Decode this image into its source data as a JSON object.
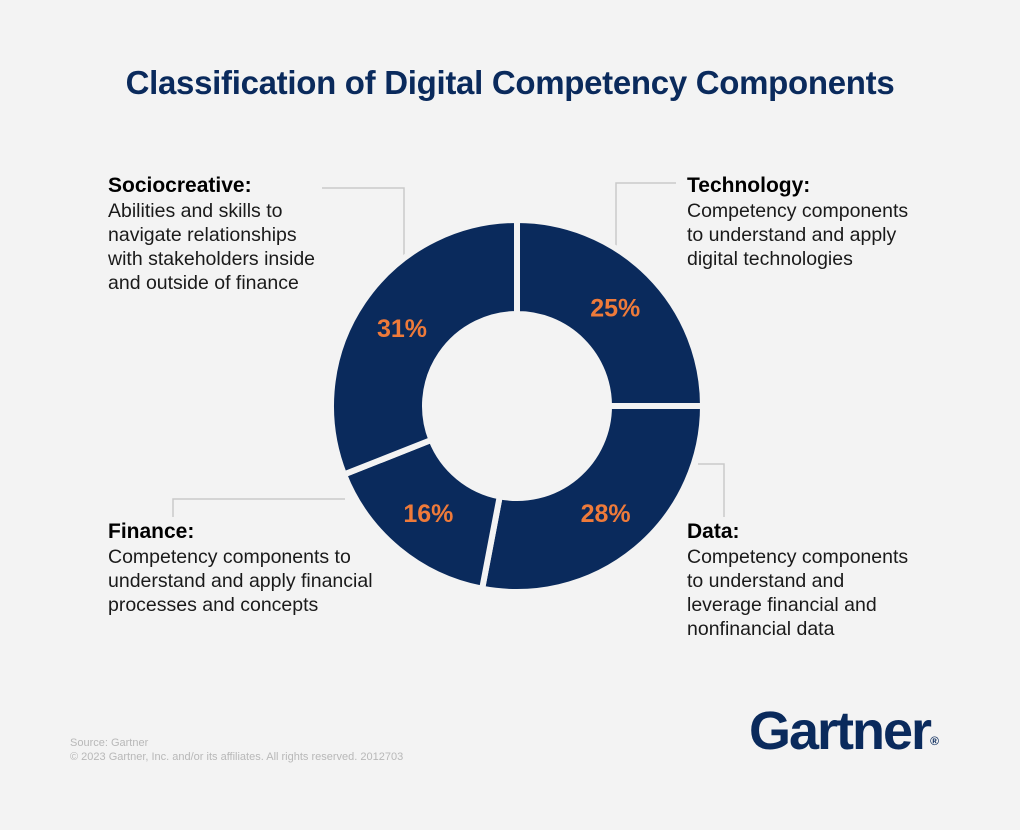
{
  "title": "Classification of Digital Competency Components",
  "chart_data": {
    "type": "pie",
    "subtype": "donut",
    "categories": [
      "Technology",
      "Data",
      "Finance",
      "Sociocreative"
    ],
    "values": [
      25,
      28,
      16,
      31
    ],
    "value_labels": [
      "25%",
      "28%",
      "16%",
      "31%"
    ],
    "colors": {
      "slice": "#0a2a5c",
      "label": "#ee7a3a",
      "gap": "#f3f3f3"
    }
  },
  "callouts": {
    "sociocreative": {
      "head": "Sociocreative:",
      "desc": "Abilities and skills to\nnavigate relationships\nwith stakeholders inside\nand outside of finance"
    },
    "technology": {
      "head": "Technology:",
      "desc": "Competency components\nto understand and apply\ndigital technologies"
    },
    "finance": {
      "head": "Finance:",
      "desc": "Competency components to\nunderstand and apply financial\nprocesses and concepts"
    },
    "data": {
      "head": "Data:",
      "desc": "Competency components\nto understand and\nleverage financial and\nnonfinancial data"
    }
  },
  "footer": {
    "source": "Source: Gartner",
    "copyright": "© 2023 Gartner, Inc. and/or its affiliates. All rights reserved. 2012703"
  },
  "logo": {
    "text": "Gartner",
    "mark": "®"
  }
}
